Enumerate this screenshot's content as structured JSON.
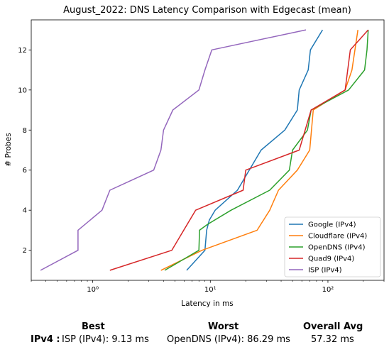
{
  "chart_data": {
    "type": "line",
    "title": "August_2022: DNS Latency Comparison with Edgecast (mean)",
    "xlabel": "Latency in ms",
    "ylabel": "# Probes",
    "x_scale": "log",
    "xlim": [
      0.3,
      300
    ],
    "ylim": [
      0.5,
      13.5
    ],
    "x_ticks": [
      {
        "value": 1,
        "label": "10⁰"
      },
      {
        "value": 10,
        "label": "10¹"
      },
      {
        "value": 100,
        "label": "10²"
      }
    ],
    "y_ticks": [
      2,
      4,
      6,
      8,
      10,
      12
    ],
    "grid": false,
    "legend_position": "lower right",
    "series": [
      {
        "name": "Google (IPv4)",
        "color": "#1f77b4",
        "x": [
          6.3,
          9.0,
          9.3,
          9.8,
          11.0,
          17.0,
          27.0,
          43.0,
          55.0,
          57.0,
          68.0,
          71.0,
          90.0
        ],
        "y": [
          1,
          2,
          3,
          3.5,
          4,
          5,
          7,
          8,
          9,
          10,
          11,
          12,
          13
        ]
      },
      {
        "name": "Cloudflare (IPv4)",
        "color": "#ff7f0e",
        "x": [
          3.8,
          8.5,
          25.0,
          32.0,
          38.0,
          55.0,
          70.0,
          75.0,
          140.0,
          160.0,
          180.0
        ],
        "y": [
          1,
          2,
          3,
          4,
          5,
          6,
          7,
          9,
          10,
          11,
          13
        ]
      },
      {
        "name": "OpenDNS (IPv4)",
        "color": "#2ca02c",
        "x": [
          4.1,
          8.0,
          8.1,
          9.5,
          15.0,
          32.0,
          47.0,
          50.0,
          67.0,
          72.0,
          150.0,
          205.0,
          215.0,
          220.0
        ],
        "y": [
          1,
          2,
          3,
          3.3,
          4,
          5,
          6,
          7,
          8,
          9,
          10,
          11,
          12,
          13
        ]
      },
      {
        "name": "Quad9 (IPv4)",
        "color": "#d62728",
        "x": [
          1.4,
          4.7,
          7.5,
          19.0,
          20.0,
          57.0,
          72.0,
          140.0,
          155.0,
          220.0
        ],
        "y": [
          1,
          2,
          4,
          5,
          6,
          7,
          9,
          10,
          12,
          13
        ]
      },
      {
        "name": "ISP (IPv4)",
        "color": "#9467bd",
        "x": [
          0.36,
          0.75,
          0.75,
          1.2,
          1.4,
          3.3,
          3.8,
          4.0,
          4.8,
          8.0,
          9.0,
          10.3,
          65.0
        ],
        "y": [
          1,
          2,
          3,
          4,
          5,
          6,
          7,
          8,
          9,
          10,
          11,
          12,
          13
        ]
      }
    ]
  },
  "summary": {
    "best_header": "Best",
    "worst_header": "Worst",
    "avg_header": "Overall Avg",
    "row_label": "IPv4 :",
    "best_value": "ISP (IPv4): 9.13 ms",
    "worst_value": "OpenDNS (IPv4): 86.29 ms",
    "avg_value": "57.32 ms"
  }
}
